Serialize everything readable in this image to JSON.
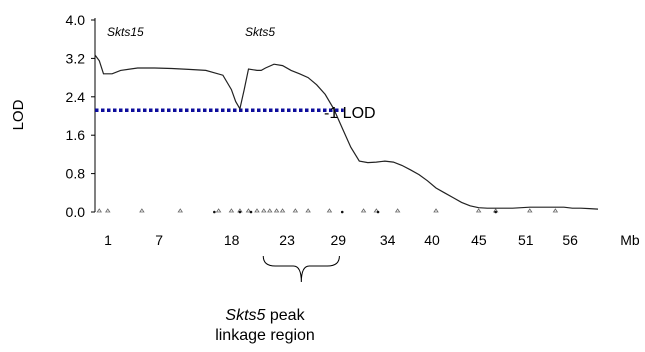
{
  "chart_data": {
    "type": "line",
    "ylabel": "LOD",
    "x_unit_label": "Mb",
    "ylim": [
      0.0,
      4.0
    ],
    "y_ticks": [
      "0.0",
      "0.8",
      "1.6",
      "2.4",
      "3.2",
      "4.0"
    ],
    "x_ticks": [
      "1",
      "7",
      "18",
      "23",
      "29",
      "34",
      "40",
      "45",
      "51",
      "56"
    ],
    "series": [
      {
        "x": [
          0,
          0.5,
          1,
          2,
          3,
          5,
          7,
          9,
          11,
          13,
          14,
          15,
          16,
          16.5,
          17,
          17.5,
          18,
          19,
          19.5,
          20,
          21,
          22,
          23,
          24,
          25,
          26,
          27,
          28,
          29,
          30,
          31,
          32,
          33,
          34,
          35,
          36,
          37,
          38,
          39,
          40,
          41,
          42,
          43,
          44,
          45,
          46,
          47,
          48,
          49,
          50,
          51,
          52,
          53,
          54,
          55,
          56,
          57,
          58,
          59
        ],
        "y": [
          3.27,
          3.15,
          2.88,
          2.88,
          2.95,
          3.0,
          3.0,
          2.99,
          2.97,
          2.95,
          2.9,
          2.85,
          2.55,
          2.3,
          2.15,
          2.55,
          2.98,
          2.95,
          2.95,
          3.0,
          3.08,
          3.05,
          2.95,
          2.88,
          2.8,
          2.65,
          2.45,
          2.15,
          1.75,
          1.35,
          1.06,
          1.03,
          1.04,
          1.06,
          1.04,
          0.97,
          0.88,
          0.78,
          0.65,
          0.5,
          0.4,
          0.3,
          0.2,
          0.13,
          0.09,
          0.08,
          0.08,
          0.08,
          0.08,
          0.09,
          0.1,
          0.1,
          0.1,
          0.1,
          0.1,
          0.08,
          0.08,
          0.07,
          0.06
        ]
      }
    ],
    "threshold": {
      "y": 2.12,
      "x_start": 0,
      "x_end": 28,
      "label": "-1 LOD",
      "color": "#0d0d9c"
    },
    "marker_labels": [
      {
        "text": "Skts15",
        "x": 2
      },
      {
        "text": "Skts5",
        "x": 20.7
      }
    ],
    "markers_x": [
      0.5,
      1.5,
      5.5,
      10,
      14.5,
      16,
      17,
      18,
      19,
      19.8,
      20.5,
      21.3,
      22,
      23.5,
      25,
      27.5,
      31.5,
      33,
      35.5,
      40,
      45,
      47,
      51,
      54
    ],
    "region": {
      "x_start": 19.5,
      "x_end": 28.2
    },
    "grid": false,
    "legend": "none",
    "line_color": "#222222",
    "region_label": {
      "italic": "Skts5",
      "rest": " peak",
      "line2": "linkage region"
    }
  }
}
